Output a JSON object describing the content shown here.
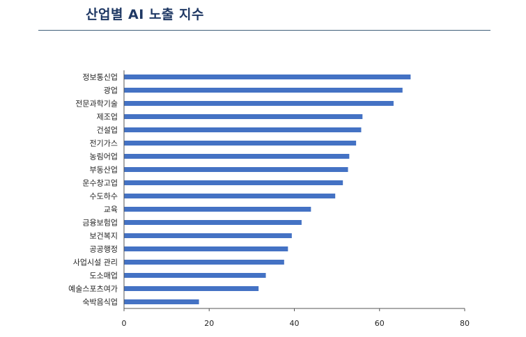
{
  "header": {
    "title": "산업별 AI 노출 지수"
  },
  "colors": {
    "bar": "#4472c4",
    "title": "#1f3864",
    "rule": "#3f5f7a",
    "axis": "#555555"
  },
  "chart_data": {
    "type": "bar",
    "orientation": "horizontal",
    "title": "산업별 AI 노출 지수",
    "xlabel": "",
    "ylabel": "",
    "xlim": [
      0,
      80
    ],
    "xticks": [
      0,
      20,
      40,
      60,
      80
    ],
    "grid": false,
    "categories": [
      "정보통신업",
      "광업",
      "전문과학기술",
      "제조업",
      "건설업",
      "전기가스",
      "농림어업",
      "부동산업",
      "운수창고업",
      "수도하수",
      "교육",
      "금융보험업",
      "보건복지",
      "공공행정",
      "사업시설 관리",
      "도소매업",
      "예술스포츠여가",
      "숙박음식업"
    ],
    "values": [
      67.3,
      65.4,
      63.3,
      56.0,
      55.7,
      54.5,
      52.9,
      52.6,
      51.4,
      49.6,
      43.9,
      41.7,
      39.4,
      38.5,
      37.6,
      33.3,
      31.6,
      17.6
    ]
  }
}
